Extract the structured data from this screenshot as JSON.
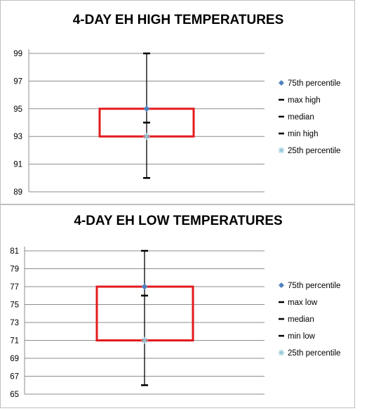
{
  "colors": {
    "box": "#e31a1c",
    "whisker": "#000000",
    "p75_marker": "#4f81bd",
    "p25_marker": "#8fc7d5",
    "grid": "#8c8c8c"
  },
  "chart_data": [
    {
      "type": "box",
      "title": "4-DAY EH HIGH TEMPERATURES",
      "xlabel": "",
      "ylabel": "",
      "ylim": [
        89,
        99
      ],
      "yticks": [
        "89",
        "91",
        "93",
        "95",
        "97",
        "99"
      ],
      "grid": true,
      "legend_position": "right",
      "series": [
        {
          "name": "75th percentile",
          "value": 95,
          "marker": "diamond"
        },
        {
          "name": "max high",
          "value": 99,
          "marker": "dash"
        },
        {
          "name": "median",
          "value": 94,
          "marker": "dash"
        },
        {
          "name": "min high",
          "value": 90,
          "marker": "dash"
        },
        {
          "name": "25th percentile",
          "value": 93,
          "marker": "asterisk"
        }
      ]
    },
    {
      "type": "box",
      "title": "4-DAY EH LOW TEMPERATURES",
      "xlabel": "",
      "ylabel": "",
      "ylim": [
        65,
        81
      ],
      "yticks": [
        "65",
        "67",
        "69",
        "71",
        "73",
        "75",
        "77",
        "79",
        "81"
      ],
      "grid": true,
      "legend_position": "right",
      "series": [
        {
          "name": "75th percentile",
          "value": 77,
          "marker": "diamond"
        },
        {
          "name": "max low",
          "value": 81,
          "marker": "dash"
        },
        {
          "name": "median",
          "value": 76,
          "marker": "dash"
        },
        {
          "name": "min low",
          "value": 66,
          "marker": "dash"
        },
        {
          "name": "25th percentile",
          "value": 71,
          "marker": "asterisk"
        }
      ]
    }
  ]
}
